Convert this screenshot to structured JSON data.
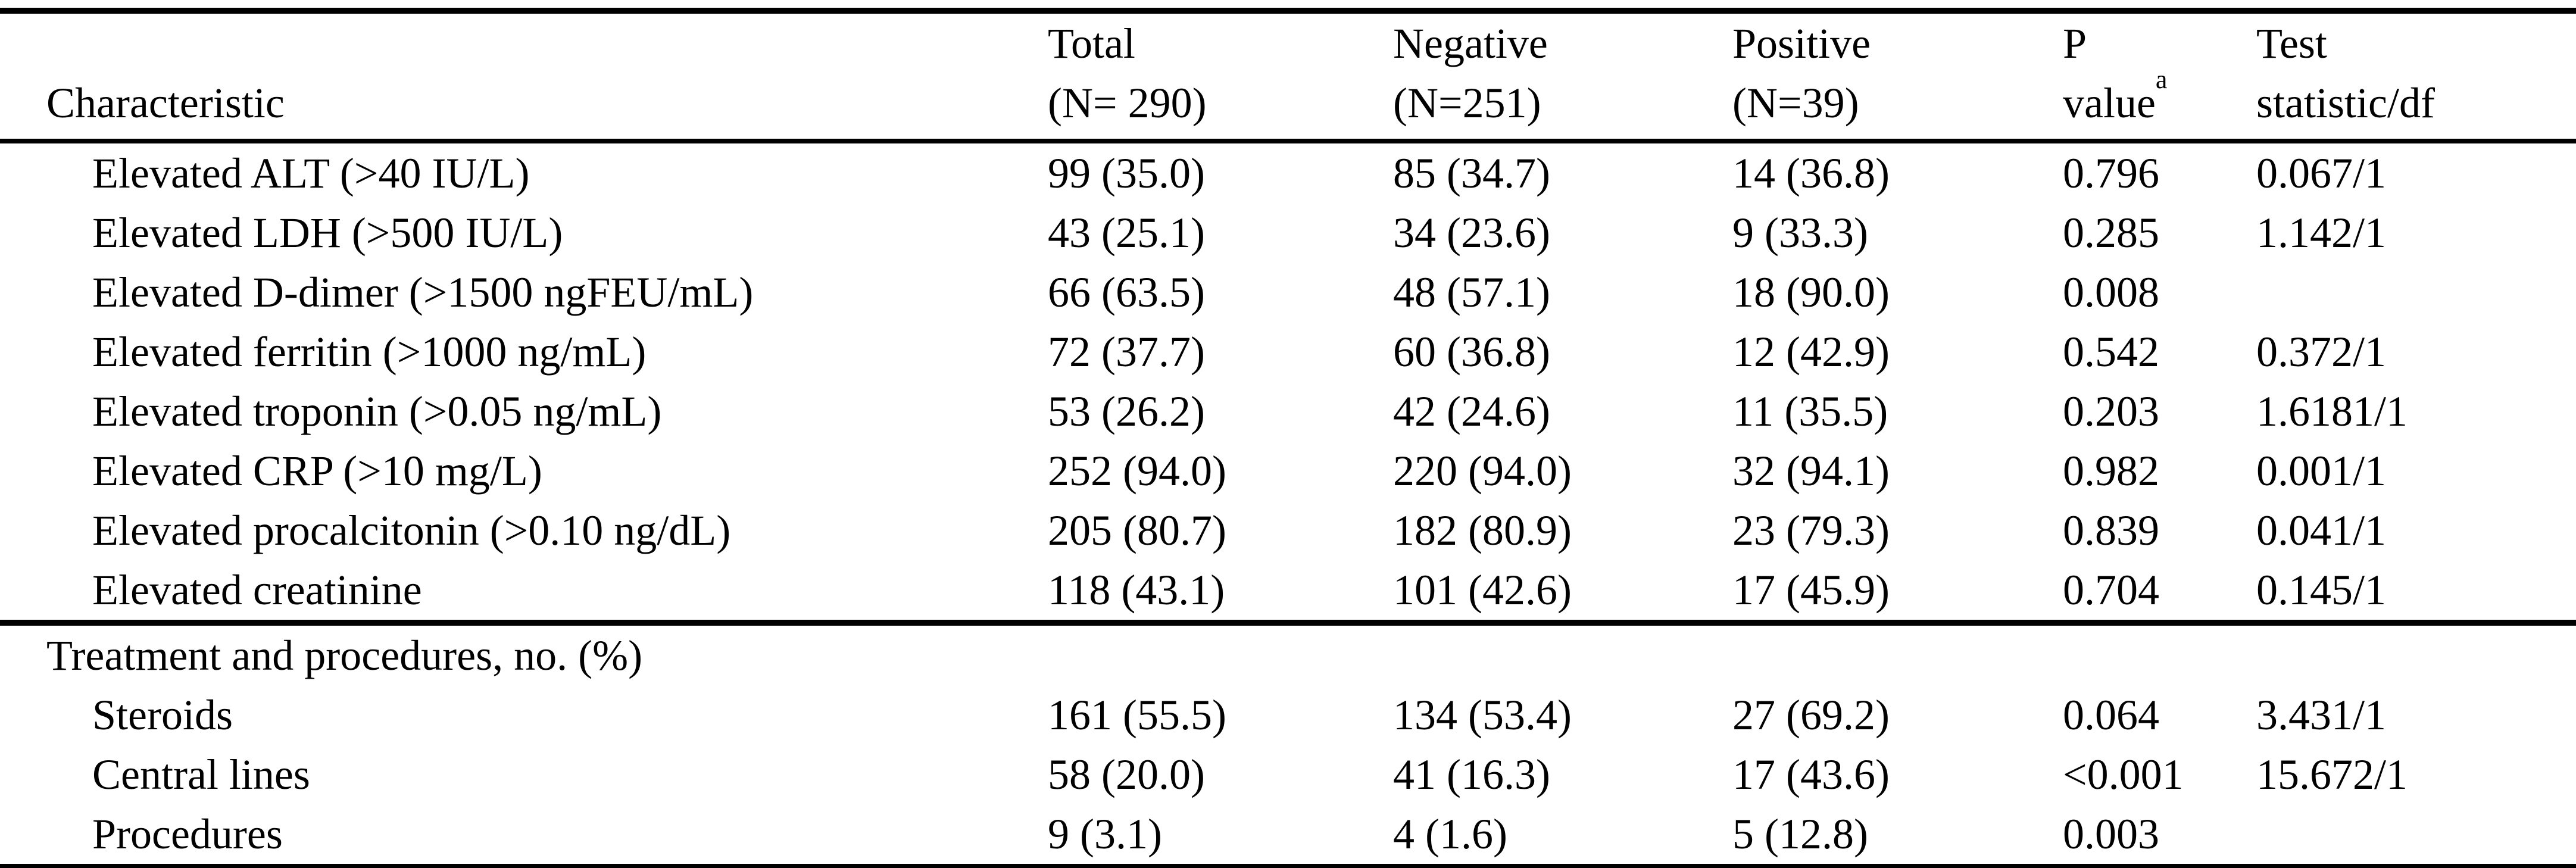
{
  "table": {
    "columns": [
      {
        "line1": "",
        "line2": "Characteristic"
      },
      {
        "line1": "Total",
        "line2": "(N= 290)"
      },
      {
        "line1": "Negative",
        "line2": "(N=251)"
      },
      {
        "line1": "Positive",
        "line2": "(N=39)"
      },
      {
        "line1": "P",
        "line2": "value",
        "sup": "a"
      },
      {
        "line1": "Test",
        "line2": "statistic/df"
      }
    ],
    "rows": [
      {
        "label": "Elevated ALT (>40 IU/L)",
        "total": "99 (35.0)",
        "negative": "85 (34.7)",
        "positive": "14 (36.8)",
        "p": "0.796",
        "test": "0.067/1"
      },
      {
        "label": "Elevated LDH (>500 IU/L)",
        "total": "43 (25.1)",
        "negative": "34 (23.6)",
        "positive": "9 (33.3)",
        "p": "0.285",
        "test": "1.142/1"
      },
      {
        "label": "Elevated D-dimer (>1500 ngFEU/mL)",
        "total": "66 (63.5)",
        "negative": "48 (57.1)",
        "positive": "18 (90.0)",
        "p": "0.008",
        "test": ""
      },
      {
        "label": "Elevated ferritin (>1000 ng/mL)",
        "total": "72 (37.7)",
        "negative": "60 (36.8)",
        "positive": "12 (42.9)",
        "p": "0.542",
        "test": "0.372/1"
      },
      {
        "label": "Elevated troponin (>0.05 ng/mL)",
        "total": "53 (26.2)",
        "negative": "42 (24.6)",
        "positive": "11 (35.5)",
        "p": "0.203",
        "test": "1.6181/1"
      },
      {
        "label": "Elevated CRP (>10 mg/L)",
        "total": "252 (94.0)",
        "negative": "220 (94.0)",
        "positive": "32 (94.1)",
        "p": "0.982",
        "test": "0.001/1"
      },
      {
        "label": "Elevated procalcitonin (>0.10 ng/dL)",
        "total": "205 (80.7)",
        "negative": "182 (80.9)",
        "positive": "23 (79.3)",
        "p": "0.839",
        "test": "0.041/1"
      },
      {
        "label": "Elevated creatinine",
        "total": "118 (43.1)",
        "negative": "101 (42.6)",
        "positive": "17 (45.9)",
        "p": "0.704",
        "test": "0.145/1"
      },
      {
        "section": true,
        "label": "Treatment and procedures, no. (%)"
      },
      {
        "label": "Steroids",
        "total": "161 (55.5)",
        "negative": "134 (53.4)",
        "positive": "27 (69.2)",
        "p": "0.064",
        "test": "3.431/1"
      },
      {
        "label": "Central lines",
        "total": "58 (20.0)",
        "negative": "41 (16.3)",
        "positive": "17 (43.6)",
        "p": "<0.001",
        "test": "15.672/1"
      },
      {
        "label": "Procedures",
        "total": "9 (3.1)",
        "negative": "4 (1.6)",
        "positive": "5 (12.8)",
        "p": "0.003",
        "test": ""
      }
    ]
  }
}
